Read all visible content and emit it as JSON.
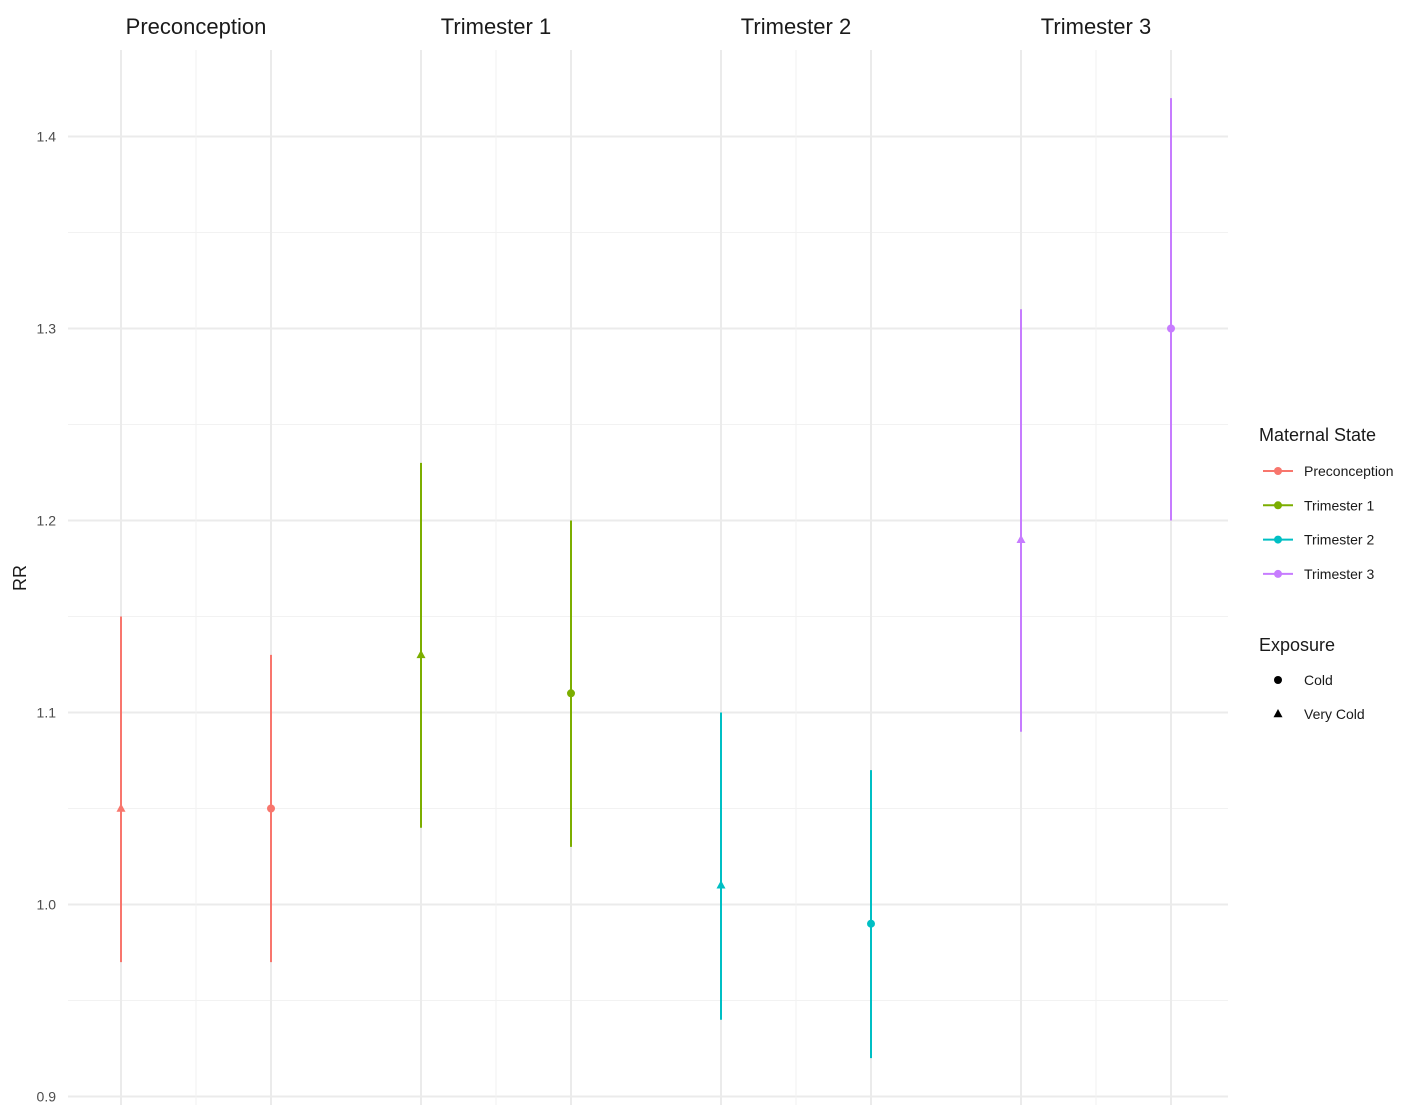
{
  "chart_data": {
    "type": "scatter",
    "subtype": "point-range (estimates with confidence intervals), faceted",
    "ylabel": "RR",
    "xlabel": "",
    "ylim": [
      0.9,
      1.42
    ],
    "yticks": [
      0.9,
      1.0,
      1.1,
      1.2,
      1.3,
      1.4
    ],
    "grid": true,
    "facets": [
      "Preconception",
      "Trimester 1",
      "Trimester 2",
      "Trimester 3"
    ],
    "series": [
      {
        "facet": "Preconception",
        "color": "#F8766D",
        "points": [
          {
            "exposure": "Very Cold",
            "rr": 1.05,
            "lower": 0.97,
            "upper": 1.15
          },
          {
            "exposure": "Cold",
            "rr": 1.05,
            "lower": 0.97,
            "upper": 1.13
          }
        ]
      },
      {
        "facet": "Trimester 1",
        "color": "#7CAE00",
        "points": [
          {
            "exposure": "Very Cold",
            "rr": 1.13,
            "lower": 1.04,
            "upper": 1.23
          },
          {
            "exposure": "Cold",
            "rr": 1.11,
            "lower": 1.03,
            "upper": 1.2
          }
        ]
      },
      {
        "facet": "Trimester 2",
        "color": "#00BFC4",
        "points": [
          {
            "exposure": "Very Cold",
            "rr": 1.01,
            "lower": 0.94,
            "upper": 1.1
          },
          {
            "exposure": "Cold",
            "rr": 0.99,
            "lower": 0.92,
            "upper": 1.07
          }
        ]
      },
      {
        "facet": "Trimester 3",
        "color": "#C77CFF",
        "points": [
          {
            "exposure": "Very Cold",
            "rr": 1.19,
            "lower": 1.09,
            "upper": 1.31
          },
          {
            "exposure": "Cold",
            "rr": 1.3,
            "lower": 1.2,
            "upper": 1.42
          }
        ]
      }
    ],
    "legend": {
      "placement": "right",
      "color_title": "Maternal State",
      "color_items": [
        {
          "label": "Preconception",
          "color": "#F8766D"
        },
        {
          "label": "Trimester 1",
          "color": "#7CAE00"
        },
        {
          "label": "Trimester 2",
          "color": "#00BFC4"
        },
        {
          "label": "Trimester 3",
          "color": "#C77CFF"
        }
      ],
      "shape_title": "Exposure",
      "shape_items": [
        {
          "label": "Cold",
          "shape": "circle"
        },
        {
          "label": "Very Cold",
          "shape": "triangle"
        }
      ]
    }
  }
}
